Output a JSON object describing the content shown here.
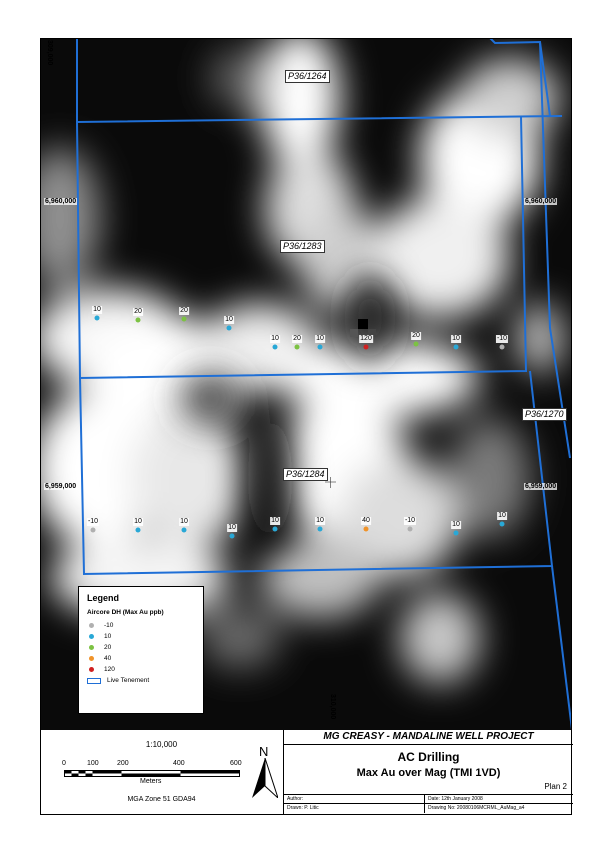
{
  "map": {
    "tenements": [
      "P36/1264",
      "P36/1283",
      "P36/1270",
      "P36/1284"
    ],
    "coords": {
      "left_top_northing": "6,960,000",
      "left_bottom_northing": "6,959,000",
      "right_top_northing": "6,960,000",
      "right_bottom_northing": "6,959,000",
      "top_easting": "309,000",
      "bottom_easting": "310,000"
    },
    "drillholes_row1": [
      "10",
      "20",
      "20",
      "10",
      "10",
      "20",
      "10",
      "120",
      "20",
      "10",
      "-10"
    ],
    "drillholes_row2": [
      "-10",
      "10",
      "10",
      "10",
      "10",
      "10",
      "40",
      "-10",
      "10",
      "10"
    ]
  },
  "legend": {
    "title": "Legend",
    "subtitle": "Aircore DH (Max Au ppb)",
    "items": [
      {
        "label": "-10",
        "color": "#b0b0b0"
      },
      {
        "label": "10",
        "color": "#29a8d6"
      },
      {
        "label": "20",
        "color": "#7cc243"
      },
      {
        "label": "40",
        "color": "#f0932a"
      },
      {
        "label": "120",
        "color": "#d02020"
      }
    ],
    "tenement_label": "Live Tenement",
    "tenement_color": "#1f6fd6"
  },
  "scale": {
    "ratio": "1:10,000",
    "ticks": [
      "0",
      "100",
      "200",
      "400",
      "600"
    ],
    "unit": "Meters",
    "datum": "MGA Zone 51 GDA94",
    "north": "N"
  },
  "title_block": {
    "project": "MG CREASY - MANDALINE WELL PROJECT",
    "title1": "AC Drilling",
    "title2": "Max Au over Mag (TMI 1VD)",
    "plan": "Plan 2",
    "author_label": "Author:",
    "date_label": "Date: 12th January 2008",
    "drawn_label": "Drawn: P. Litic",
    "drawing_no": "Drawing No: 20080106MCRML_AuMag_a4"
  }
}
